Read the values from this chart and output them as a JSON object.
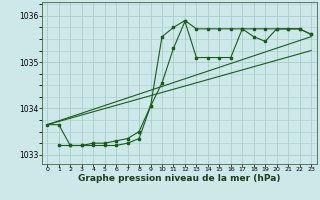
{
  "background_color": "#cce8e8",
  "grid_color": "#aacccc",
  "line_color": "#1a5c1a",
  "marker_color": "#1a5c1a",
  "xlabel": "Graphe pression niveau de la mer (hPa)",
  "xlabel_fontsize": 6.5,
  "ylim": [
    1032.8,
    1036.3
  ],
  "xlim": [
    -0.5,
    23.5
  ],
  "yticks": [
    1033,
    1034,
    1035,
    1036
  ],
  "xticks": [
    0,
    1,
    2,
    3,
    4,
    5,
    6,
    7,
    8,
    9,
    10,
    11,
    12,
    13,
    14,
    15,
    16,
    17,
    18,
    19,
    20,
    21,
    22,
    23
  ],
  "series1_x": [
    0,
    1,
    2,
    3,
    4,
    5,
    6,
    7,
    8,
    9,
    10,
    11,
    12,
    13,
    14,
    15,
    16,
    17,
    18,
    19,
    20,
    21,
    22,
    23
  ],
  "series1_y": [
    1033.65,
    1033.65,
    1033.2,
    1033.2,
    1033.25,
    1033.25,
    1033.3,
    1033.35,
    1033.5,
    1034.05,
    1035.55,
    1035.75,
    1035.9,
    1035.72,
    1035.72,
    1035.72,
    1035.72,
    1035.72,
    1035.72,
    1035.72,
    1035.72,
    1035.72,
    1035.72,
    1035.6
  ],
  "series2_x": [
    1,
    2,
    3,
    4,
    5,
    6,
    7,
    8,
    9,
    10,
    11,
    12,
    13,
    14,
    15,
    16,
    17,
    18,
    19,
    20,
    21,
    22,
    23
  ],
  "series2_y": [
    1033.2,
    1033.2,
    1033.2,
    1033.2,
    1033.2,
    1033.2,
    1033.25,
    1033.35,
    1034.05,
    1034.55,
    1035.3,
    1035.88,
    1035.1,
    1035.1,
    1035.1,
    1035.1,
    1035.72,
    1035.55,
    1035.45,
    1035.72,
    1035.72,
    1035.72,
    1035.6
  ],
  "trend1_x": [
    0,
    23
  ],
  "trend1_y": [
    1033.65,
    1035.55
  ],
  "trend2_x": [
    0,
    23
  ],
  "trend2_y": [
    1033.65,
    1035.25
  ]
}
